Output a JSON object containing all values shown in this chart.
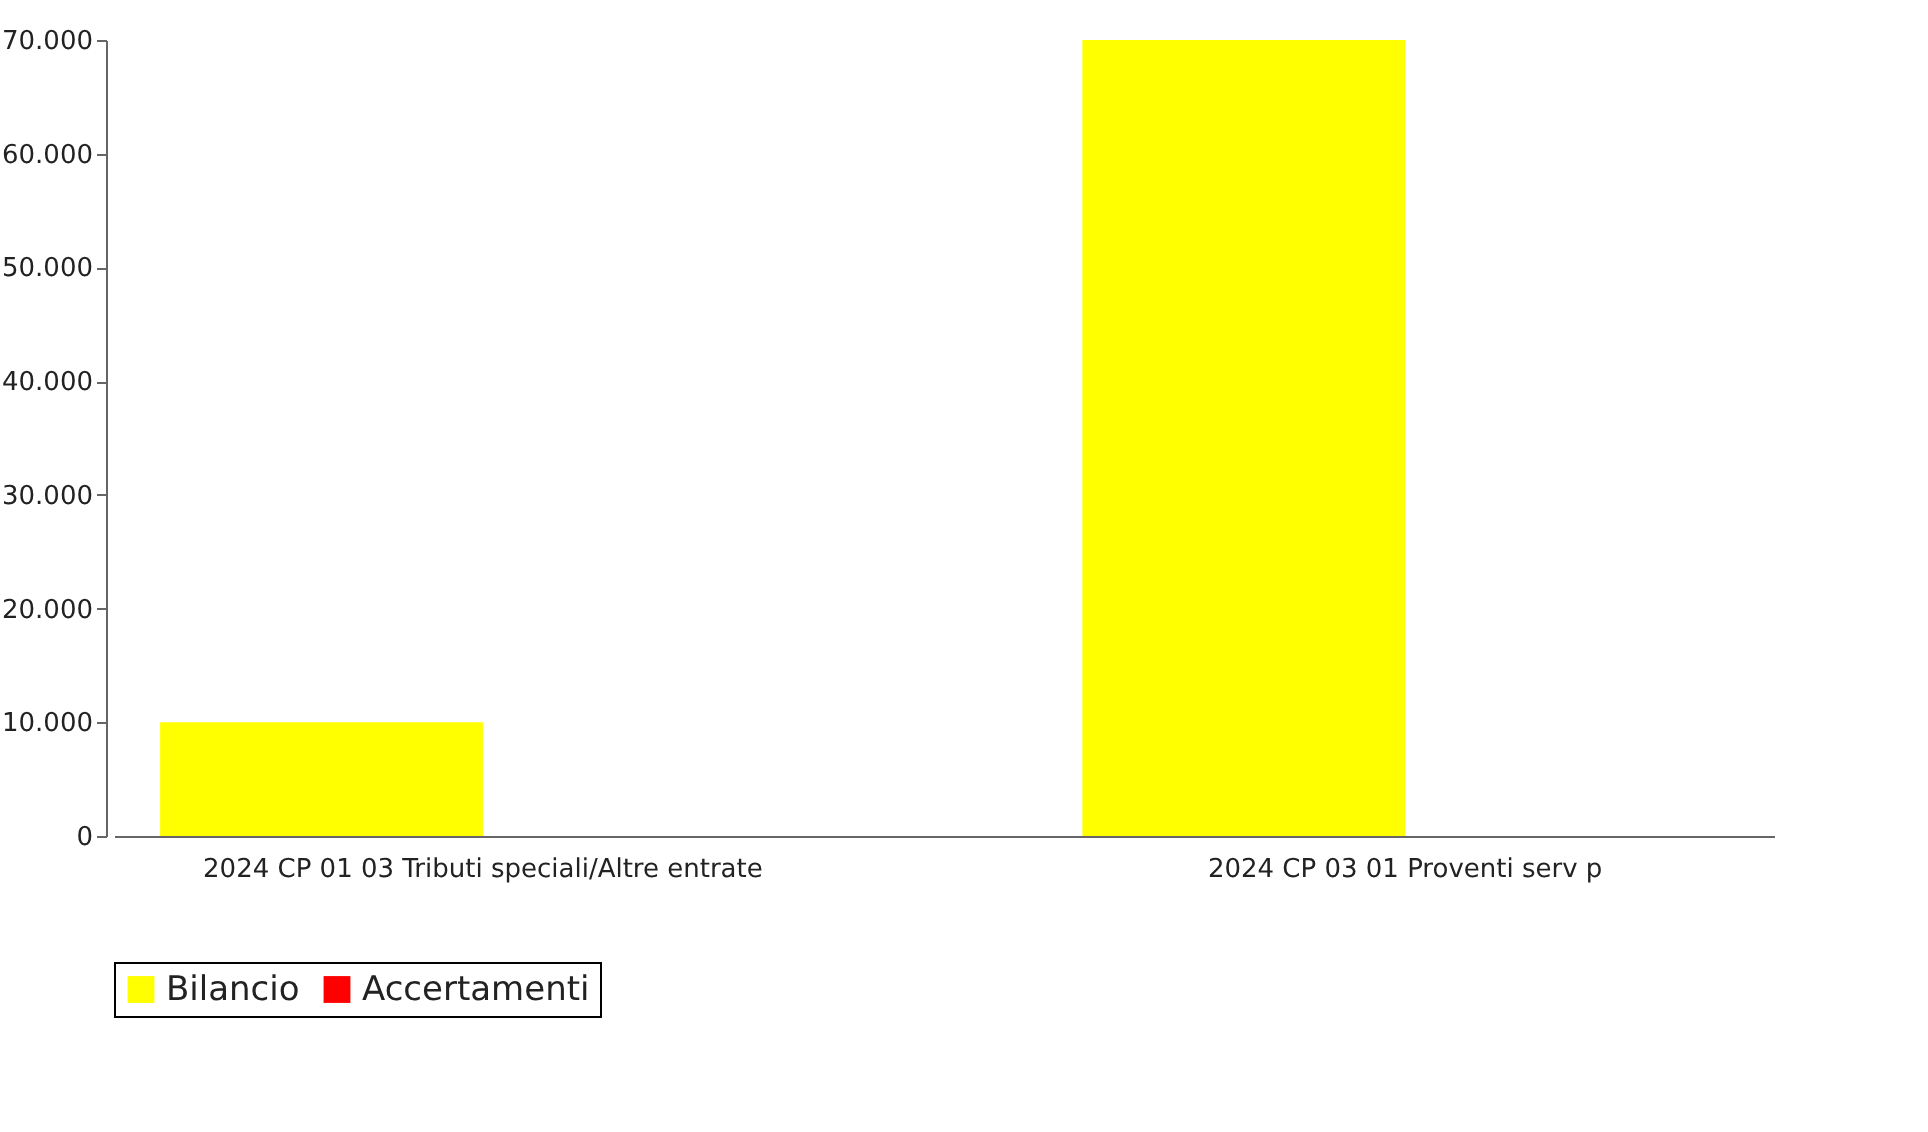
{
  "chart_data": {
    "type": "bar",
    "categories": [
      "2024 CP 01 03 Tributi speciali/Altre entrate",
      "2024 CP 03 01 Proventi serv p"
    ],
    "series": [
      {
        "name": "Bilancio",
        "color": "#ffff00",
        "values": [
          10000,
          70000
        ]
      },
      {
        "name": "Accertamenti",
        "color": "#ff0000",
        "values": [
          null,
          null
        ]
      }
    ],
    "ylim": [
      0,
      70000
    ],
    "yticks": [
      {
        "value": 0,
        "label": "0"
      },
      {
        "value": 10000,
        "label": "10.000"
      },
      {
        "value": 20000,
        "label": "20.000"
      },
      {
        "value": 30000,
        "label": "30.000"
      },
      {
        "value": 40000,
        "label": "40.000"
      },
      {
        "value": 50000,
        "label": "50.000"
      },
      {
        "value": 60000,
        "label": "60.000"
      },
      {
        "value": 70000,
        "label": "70.000"
      }
    ],
    "grid": false,
    "legend": "bottom"
  }
}
